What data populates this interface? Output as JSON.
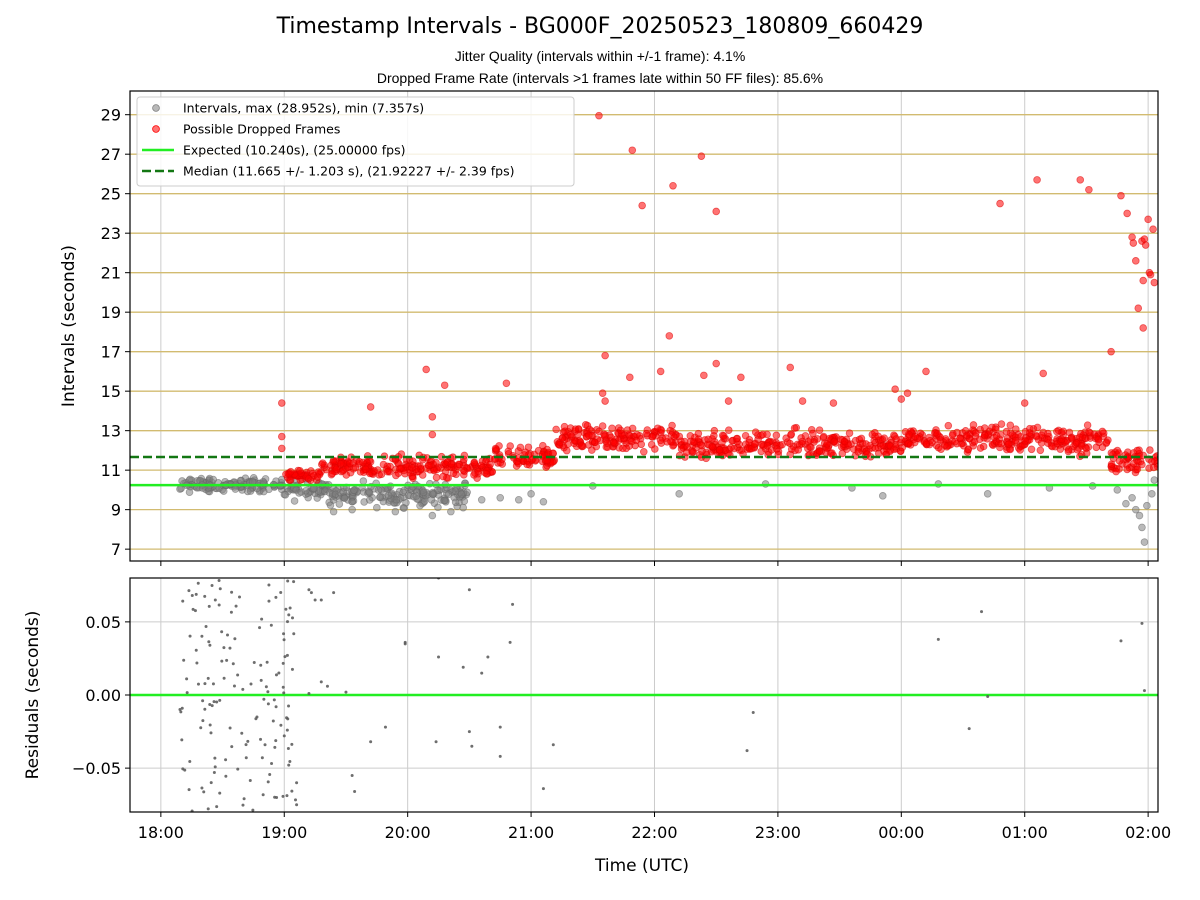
{
  "header": {
    "title": "Timestamp Intervals - BG000F_20250523_180809_660429",
    "subtitle_jitter": "Jitter Quality (intervals within +/-1 frame): 4.1%",
    "subtitle_dropped": "Dropped Frame Rate (intervals >1 frames late within 50 FF files): 85.6%"
  },
  "colors": {
    "intervals": "#808080",
    "dropped": "#ff0000",
    "expected": "#22ee22",
    "median": "#137713",
    "hgrid": "#d2bb70",
    "vgrid": "#cccccc"
  },
  "chart_data": [
    {
      "type": "scatter",
      "panel": "top",
      "ylabel": "Intervals (seconds)",
      "xlabel": "",
      "x_unit": "hours since 18:00 UTC",
      "xlim": [
        -0.25,
        8.08
      ],
      "ylim": [
        6.4,
        30.2
      ],
      "x_ticks": [
        0,
        1,
        2,
        3,
        4,
        5,
        6,
        7,
        8
      ],
      "x_tick_labels": [
        "18:00",
        "19:00",
        "20:00",
        "21:00",
        "22:00",
        "23:00",
        "00:00",
        "01:00",
        "02:00"
      ],
      "y_ticks": [
        7,
        9,
        11,
        13,
        15,
        17,
        19,
        21,
        23,
        25,
        27,
        29
      ],
      "grid": "on",
      "legend_position": "top-left",
      "legend": [
        {
          "label": "Intervals, max (28.952s), min (7.357s)",
          "kind": "marker",
          "color": "#808080"
        },
        {
          "label": "Possible Dropped Frames",
          "kind": "marker",
          "color": "#ff0000"
        },
        {
          "label": "Expected (10.240s), (25.00000 fps)",
          "kind": "line",
          "color": "#22ee22"
        },
        {
          "label": "Median (11.665 +/- 1.203 s), (21.92227 +/- 2.39 fps)",
          "kind": "dashed",
          "color": "#137713"
        }
      ],
      "lines": {
        "expected": 10.24,
        "median": 11.665
      },
      "series": [
        {
          "name": "Intervals, max (28.952s), min (7.357s)",
          "bands": [
            {
              "x0": 0.15,
              "x1": 1.0,
              "center": 10.25,
              "spread": 0.35
            },
            {
              "x0": 1.0,
              "x1": 1.35,
              "center": 10.0,
              "spread": 0.5
            },
            {
              "x0": 1.35,
              "x1": 2.5,
              "center": 9.8,
              "spread": 0.6
            }
          ],
          "points": [
            [
              1.4,
              8.9
            ],
            [
              1.55,
              9.0
            ],
            [
              1.75,
              9.1
            ],
            [
              1.9,
              8.9
            ],
            [
              2.1,
              9.2
            ],
            [
              2.2,
              8.7
            ],
            [
              2.35,
              8.9
            ],
            [
              2.45,
              9.1
            ],
            [
              2.6,
              9.5
            ],
            [
              2.75,
              9.6
            ],
            [
              2.9,
              9.5
            ],
            [
              3.0,
              9.8
            ],
            [
              3.1,
              9.4
            ],
            [
              3.5,
              10.2
            ],
            [
              4.2,
              9.8
            ],
            [
              4.9,
              10.3
            ],
            [
              5.6,
              10.1
            ],
            [
              5.85,
              9.7
            ],
            [
              6.3,
              10.3
            ],
            [
              6.7,
              9.8
            ],
            [
              7.2,
              10.1
            ],
            [
              7.55,
              10.2
            ],
            [
              7.75,
              10.0
            ],
            [
              7.82,
              9.3
            ],
            [
              7.87,
              9.6
            ],
            [
              7.9,
              9.0
            ],
            [
              7.93,
              8.7
            ],
            [
              7.95,
              8.1
            ],
            [
              7.97,
              7.357
            ],
            [
              7.99,
              9.2
            ],
            [
              8.03,
              9.8
            ],
            [
              8.05,
              10.5
            ]
          ]
        },
        {
          "name": "Possible Dropped Frames",
          "bands": [
            {
              "x0": 1.0,
              "x1": 1.3,
              "center": 10.75,
              "spread": 0.25
            },
            {
              "x0": 1.3,
              "x1": 2.7,
              "center": 11.15,
              "spread": 0.55
            },
            {
              "x0": 2.7,
              "x1": 3.2,
              "center": 11.6,
              "spread": 0.6
            },
            {
              "x0": 3.2,
              "x1": 4.2,
              "center": 12.6,
              "spread": 0.7
            },
            {
              "x0": 4.2,
              "x1": 6.0,
              "center": 12.3,
              "spread": 0.7
            },
            {
              "x0": 6.0,
              "x1": 7.7,
              "center": 12.55,
              "spread": 0.7
            },
            {
              "x0": 7.7,
              "x1": 8.08,
              "center": 11.5,
              "spread": 0.7
            }
          ],
          "points": [
            [
              0.98,
              14.4
            ],
            [
              0.98,
              12.7
            ],
            [
              0.98,
              12.1
            ],
            [
              1.7,
              14.2
            ],
            [
              2.15,
              16.1
            ],
            [
              2.2,
              13.7
            ],
            [
              2.3,
              15.3
            ],
            [
              2.2,
              12.8
            ],
            [
              2.8,
              15.4
            ],
            [
              3.6,
              16.8
            ],
            [
              3.58,
              14.9
            ],
            [
              3.6,
              14.5
            ],
            [
              3.8,
              15.7
            ],
            [
              4.05,
              16.0
            ],
            [
              3.55,
              28.952
            ],
            [
              3.82,
              27.2
            ],
            [
              3.9,
              24.4
            ],
            [
              4.15,
              25.4
            ],
            [
              4.38,
              26.9
            ],
            [
              4.5,
              24.1
            ],
            [
              4.12,
              17.8
            ],
            [
              4.4,
              15.8
            ],
            [
              4.5,
              16.4
            ],
            [
              4.6,
              14.5
            ],
            [
              4.7,
              15.7
            ],
            [
              5.1,
              16.2
            ],
            [
              5.2,
              14.5
            ],
            [
              5.45,
              14.4
            ],
            [
              5.95,
              15.1
            ],
            [
              6.05,
              14.9
            ],
            [
              6.2,
              16.0
            ],
            [
              6.0,
              14.6
            ],
            [
              7.15,
              15.9
            ],
            [
              7.0,
              14.4
            ],
            [
              6.8,
              24.5
            ],
            [
              7.1,
              25.7
            ],
            [
              7.45,
              25.7
            ],
            [
              7.52,
              25.2
            ],
            [
              7.7,
              17.0
            ],
            [
              7.78,
              24.9
            ],
            [
              7.83,
              24.0
            ],
            [
              7.87,
              22.8
            ],
            [
              7.88,
              22.5
            ],
            [
              7.9,
              21.6
            ],
            [
              7.92,
              19.2
            ],
            [
              7.95,
              22.6
            ],
            [
              7.97,
              22.7
            ],
            [
              7.98,
              22.4
            ],
            [
              7.96,
              20.6
            ],
            [
              7.96,
              18.2
            ],
            [
              8.0,
              23.7
            ],
            [
              8.02,
              20.9
            ],
            [
              8.04,
              23.2
            ],
            [
              8.05,
              20.5
            ],
            [
              8.01,
              21.0
            ]
          ]
        }
      ]
    },
    {
      "type": "scatter",
      "panel": "bottom",
      "ylabel": "Residuals (seconds)",
      "xlabel": "Time (UTC)",
      "x_unit": "hours since 18:00 UTC",
      "xlim": [
        -0.25,
        8.08
      ],
      "ylim": [
        -0.08,
        0.08
      ],
      "x_ticks": [
        0,
        1,
        2,
        3,
        4,
        5,
        6,
        7,
        8
      ],
      "x_tick_labels": [
        "18:00",
        "19:00",
        "20:00",
        "21:00",
        "22:00",
        "23:00",
        "00:00",
        "01:00",
        "02:00"
      ],
      "y_ticks": [
        -0.05,
        0.0,
        0.05
      ],
      "y_tick_labels": [
        "−0.05",
        "0.00",
        "0.05"
      ],
      "grid": "on",
      "lines": {
        "zero": 0.0
      },
      "series": [
        {
          "name": "",
          "cluster": {
            "x0": 0.15,
            "x1": 1.1,
            "ymin": -0.08,
            "ymax": 0.08
          },
          "points": [
            [
              1.2,
              0.072
            ],
            [
              1.22,
              0.07
            ],
            [
              1.25,
              0.065
            ],
            [
              1.3,
              0.065
            ],
            [
              1.4,
              0.07
            ],
            [
              1.98,
              0.036
            ],
            [
              1.98,
              0.035
            ],
            [
              2.25,
              0.08
            ],
            [
              2.5,
              0.072
            ],
            [
              2.85,
              0.062
            ],
            [
              2.83,
              0.036
            ],
            [
              2.65,
              0.026
            ],
            [
              2.6,
              0.015
            ],
            [
              2.45,
              0.019
            ],
            [
              2.25,
              0.026
            ],
            [
              1.35,
              0.006
            ],
            [
              1.5,
              0.002
            ],
            [
              1.3,
              0.009
            ],
            [
              1.2,
              0.001
            ],
            [
              1.82,
              -0.022
            ],
            [
              1.7,
              -0.032
            ],
            [
              2.23,
              -0.032
            ],
            [
              2.5,
              -0.025
            ],
            [
              2.52,
              -0.035
            ],
            [
              2.75,
              -0.022
            ],
            [
              2.75,
              -0.042
            ],
            [
              3.18,
              -0.034
            ],
            [
              3.1,
              -0.064
            ],
            [
              1.55,
              -0.055
            ],
            [
              1.57,
              -0.066
            ],
            [
              1.1,
              -0.06
            ],
            [
              1.1,
              -0.075
            ],
            [
              4.8,
              -0.012
            ],
            [
              4.75,
              -0.038
            ],
            [
              6.3,
              0.038
            ],
            [
              6.65,
              0.057
            ],
            [
              6.55,
              -0.023
            ],
            [
              6.7,
              -0.001
            ],
            [
              7.78,
              0.037
            ],
            [
              7.95,
              0.049
            ],
            [
              7.97,
              0.003
            ]
          ]
        }
      ]
    }
  ]
}
